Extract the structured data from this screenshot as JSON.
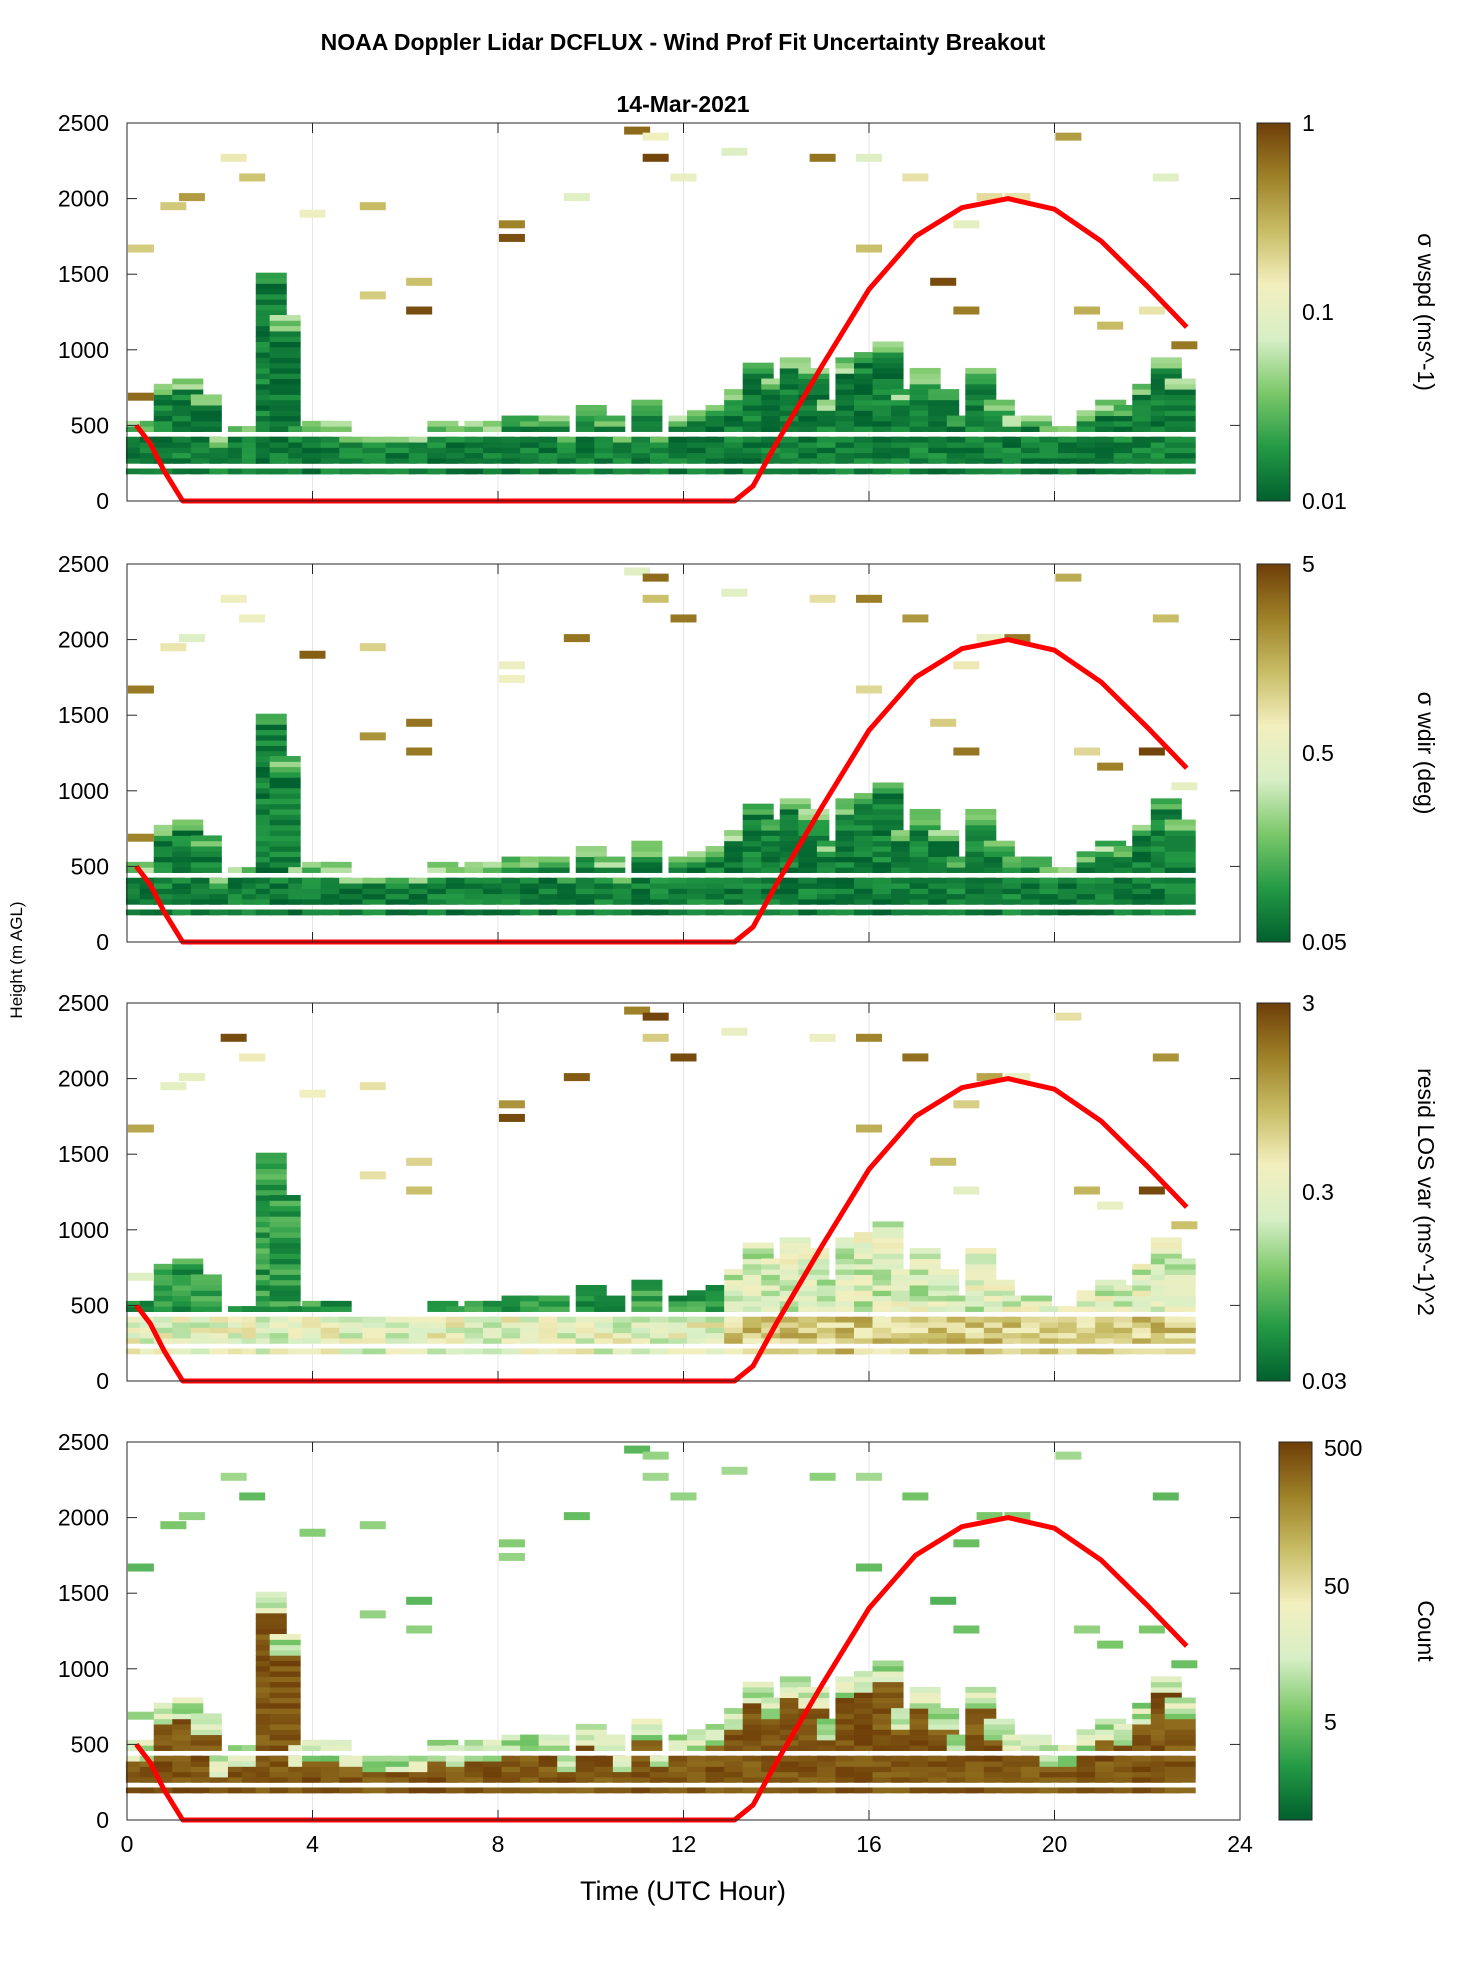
{
  "figure": {
    "title": "NOAA Doppler Lidar DCFLUX - Wind Prof Fit Uncertainty Breakout",
    "date_label": "14-Mar-2021",
    "shared_ylabel": "Height (m AGL)",
    "xlabel": "Time (UTC Hour)",
    "x_ticks": [
      "0",
      "4",
      "8",
      "12",
      "16",
      "20",
      "24"
    ],
    "y_ticks": [
      "0",
      "500",
      "1000",
      "1500",
      "2000",
      "2500"
    ]
  },
  "colors": {
    "solar_curve": "#ff0000",
    "colormap": [
      "#00602e",
      "#249a45",
      "#7bc86a",
      "#d8efc6",
      "#f3efbf",
      "#c8bd66",
      "#9e8127",
      "#6e3e08"
    ]
  },
  "chart_data": [
    {
      "type": "heatmap",
      "panel": "wspd",
      "x_range": [
        0,
        24
      ],
      "y_range": [
        0,
        2500
      ],
      "colorbar": {
        "label": "σ wspd (ms^-1)",
        "scale": "log",
        "min": 0.01,
        "max": 1,
        "ticks": [
          "1",
          "0.1",
          "0.01"
        ]
      },
      "grid": "x-only"
    },
    {
      "type": "heatmap",
      "panel": "wdir",
      "x_range": [
        0,
        24
      ],
      "y_range": [
        0,
        2500
      ],
      "colorbar": {
        "label": "σ wdir (deg)",
        "scale": "log",
        "min": 0.05,
        "max": 5,
        "ticks": [
          "5",
          "0.5",
          "0.05"
        ]
      },
      "grid": "x-only"
    },
    {
      "type": "heatmap",
      "panel": "resid",
      "x_range": [
        0,
        24
      ],
      "y_range": [
        0,
        2500
      ],
      "colorbar": {
        "label": "resid LOS var (ms^-1)^2",
        "scale": "log",
        "min": 0.03,
        "max": 3,
        "ticks": [
          "3",
          "0.3",
          "0.03"
        ]
      },
      "grid": "x-only"
    },
    {
      "type": "heatmap",
      "panel": "count",
      "x_range": [
        0,
        24
      ],
      "y_range": [
        0,
        2500
      ],
      "colorbar": {
        "label": "Count",
        "scale": "log",
        "min": 1,
        "max": 500,
        "ticks": [
          "500",
          "50",
          "5"
        ]
      },
      "grid": "x-only"
    }
  ],
  "overlay_curve": {
    "name": "solar elevation profile",
    "points": [
      [
        0.2,
        500
      ],
      [
        0.5,
        380
      ],
      [
        0.8,
        200
      ],
      [
        1.2,
        0
      ],
      [
        13.1,
        0
      ],
      [
        13.5,
        100
      ],
      [
        14,
        380
      ],
      [
        15,
        900
      ],
      [
        16,
        1400
      ],
      [
        17,
        1750
      ],
      [
        18,
        1940
      ],
      [
        19,
        2000
      ],
      [
        20,
        1930
      ],
      [
        21,
        1720
      ],
      [
        22,
        1420
      ],
      [
        22.85,
        1150
      ]
    ]
  },
  "features": {
    "columns": [
      {
        "t": 0.3,
        "top": 500
      },
      {
        "t": 0.6,
        "top": 500
      },
      {
        "t": 0.9,
        "top": 750
      },
      {
        "t": 1.3,
        "top": 800
      },
      {
        "t": 1.7,
        "top": 700
      },
      {
        "t": 2.1,
        "top": 420
      },
      {
        "t": 2.5,
        "top": 470
      },
      {
        "t": 2.8,
        "top": 470
      },
      {
        "t": 3.1,
        "top": 1500
      },
      {
        "t": 3.4,
        "top": 1200
      },
      {
        "t": 3.8,
        "top": 470
      },
      {
        "t": 4.1,
        "top": 500
      },
      {
        "t": 4.5,
        "top": 500
      },
      {
        "t": 4.9,
        "top": 460
      },
      {
        "t": 5.4,
        "top": 440
      },
      {
        "t": 5.9,
        "top": 440
      },
      {
        "t": 6.4,
        "top": 440
      },
      {
        "t": 6.8,
        "top": 500
      },
      {
        "t": 7.2,
        "top": 480
      },
      {
        "t": 7.6,
        "top": 500
      },
      {
        "t": 8.0,
        "top": 520
      },
      {
        "t": 8.4,
        "top": 550
      },
      {
        "t": 8.8,
        "top": 550
      },
      {
        "t": 9.2,
        "top": 550
      },
      {
        "t": 9.6,
        "top": 450
      },
      {
        "t": 10.0,
        "top": 620
      },
      {
        "t": 10.4,
        "top": 540
      },
      {
        "t": 10.8,
        "top": 450
      },
      {
        "t": 11.2,
        "top": 640
      },
      {
        "t": 11.6,
        "top": 460
      },
      {
        "t": 12.0,
        "top": 560
      },
      {
        "t": 12.4,
        "top": 590
      },
      {
        "t": 12.8,
        "top": 620
      },
      {
        "t": 13.2,
        "top": 730
      },
      {
        "t": 13.6,
        "top": 890
      },
      {
        "t": 14.0,
        "top": 800
      },
      {
        "t": 14.4,
        "top": 940
      },
      {
        "t": 14.8,
        "top": 860
      },
      {
        "t": 15.2,
        "top": 660
      },
      {
        "t": 15.6,
        "top": 920
      },
      {
        "t": 16.0,
        "top": 980
      },
      {
        "t": 16.4,
        "top": 1050
      },
      {
        "t": 16.8,
        "top": 720
      },
      {
        "t": 17.2,
        "top": 850
      },
      {
        "t": 17.6,
        "top": 720
      },
      {
        "t": 18.0,
        "top": 560
      },
      {
        "t": 18.4,
        "top": 850
      },
      {
        "t": 18.8,
        "top": 650
      },
      {
        "t": 19.2,
        "top": 560
      },
      {
        "t": 19.6,
        "top": 560
      },
      {
        "t": 20.0,
        "top": 470
      },
      {
        "t": 20.4,
        "top": 470
      },
      {
        "t": 20.8,
        "top": 580
      },
      {
        "t": 21.2,
        "top": 640
      },
      {
        "t": 21.6,
        "top": 620
      },
      {
        "t": 22.0,
        "top": 760
      },
      {
        "t": 22.4,
        "top": 950
      },
      {
        "t": 22.7,
        "top": 800
      }
    ],
    "scattered_cells": [
      {
        "t": 0.3,
        "h": 1650
      },
      {
        "t": 0.3,
        "h": 670
      },
      {
        "t": 1.0,
        "h": 1930
      },
      {
        "t": 1.4,
        "h": 1990
      },
      {
        "t": 2.3,
        "h": 2250
      },
      {
        "t": 2.7,
        "h": 2120
      },
      {
        "t": 4.0,
        "h": 1880
      },
      {
        "t": 5.3,
        "h": 1930
      },
      {
        "t": 5.3,
        "h": 1340
      },
      {
        "t": 6.3,
        "h": 1430
      },
      {
        "t": 6.3,
        "h": 1240
      },
      {
        "t": 8.3,
        "h": 1810
      },
      {
        "t": 8.3,
        "h": 1720
      },
      {
        "t": 9.7,
        "h": 1990
      },
      {
        "t": 11.0,
        "h": 2430
      },
      {
        "t": 11.4,
        "h": 2250
      },
      {
        "t": 11.4,
        "h": 2390
      },
      {
        "t": 12.0,
        "h": 2120
      },
      {
        "t": 13.1,
        "h": 2290
      },
      {
        "t": 15.0,
        "h": 2250
      },
      {
        "t": 16.0,
        "h": 2250
      },
      {
        "t": 16.0,
        "h": 1650
      },
      {
        "t": 17.0,
        "h": 2120
      },
      {
        "t": 17.6,
        "h": 1430
      },
      {
        "t": 18.1,
        "h": 1240
      },
      {
        "t": 18.1,
        "h": 1810
      },
      {
        "t": 18.6,
        "h": 1990
      },
      {
        "t": 19.2,
        "h": 1990
      },
      {
        "t": 20.3,
        "h": 2390
      },
      {
        "t": 20.7,
        "h": 1240
      },
      {
        "t": 21.2,
        "h": 1140
      },
      {
        "t": 22.1,
        "h": 1240
      },
      {
        "t": 22.4,
        "h": 2120
      },
      {
        "t": 22.8,
        "h": 1010
      }
    ]
  }
}
